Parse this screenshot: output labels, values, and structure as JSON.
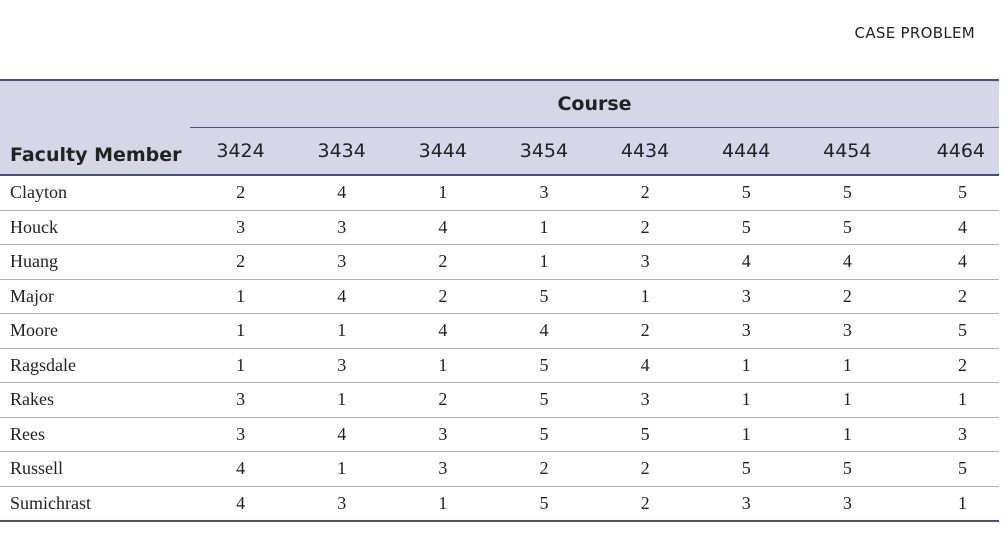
{
  "header": {
    "case_label": "CASE PROBLEM"
  },
  "table": {
    "row_header_label": "Faculty Member",
    "group_header_label": "Course",
    "courses": [
      "3424",
      "3434",
      "3444",
      "3454",
      "4434",
      "4444",
      "4454",
      "4464"
    ],
    "rows": [
      {
        "name": "Clayton",
        "values": [
          "2",
          "4",
          "1",
          "3",
          "2",
          "5",
          "5",
          "5"
        ]
      },
      {
        "name": "Houck",
        "values": [
          "3",
          "3",
          "4",
          "1",
          "2",
          "5",
          "5",
          "4"
        ]
      },
      {
        "name": "Huang",
        "values": [
          "2",
          "3",
          "2",
          "1",
          "3",
          "4",
          "4",
          "4"
        ]
      },
      {
        "name": "Major",
        "values": [
          "1",
          "4",
          "2",
          "5",
          "1",
          "3",
          "2",
          "2"
        ]
      },
      {
        "name": "Moore",
        "values": [
          "1",
          "1",
          "4",
          "4",
          "2",
          "3",
          "3",
          "5"
        ]
      },
      {
        "name": "Ragsdale",
        "values": [
          "1",
          "3",
          "1",
          "5",
          "4",
          "1",
          "1",
          "2"
        ]
      },
      {
        "name": "Rakes",
        "values": [
          "3",
          "1",
          "2",
          "5",
          "3",
          "1",
          "1",
          "1"
        ]
      },
      {
        "name": "Rees",
        "values": [
          "3",
          "4",
          "3",
          "5",
          "5",
          "1",
          "1",
          "3"
        ]
      },
      {
        "name": "Russell",
        "values": [
          "4",
          "1",
          "3",
          "2",
          "2",
          "5",
          "5",
          "5"
        ]
      },
      {
        "name": "Sumichrast",
        "values": [
          "4",
          "3",
          "1",
          "5",
          "2",
          "3",
          "3",
          "1"
        ]
      }
    ]
  },
  "colors": {
    "header_bg": "#d5d7e9",
    "rule": "#4b4f7a",
    "row_rule": "#aeb0c6"
  }
}
